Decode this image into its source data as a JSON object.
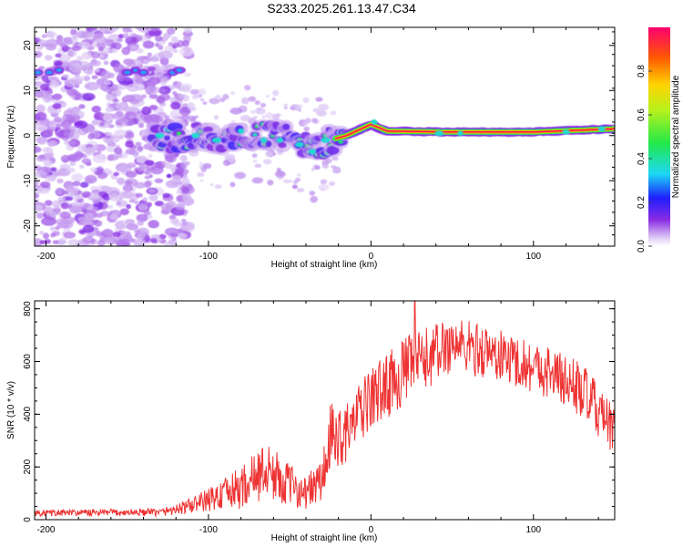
{
  "title": "S233.2025.261.13.47.C34",
  "chart_data": [
    {
      "type": "heatmap",
      "name": "spectrogram",
      "xlabel": "Height of straight line (km)",
      "ylabel": "Frequency (Hz)",
      "xlim": [
        -207,
        150
      ],
      "ylim": [
        -24.5,
        24
      ],
      "xticks": [
        -200,
        -100,
        0,
        100
      ],
      "yticks": [
        -20,
        -10,
        0,
        10,
        20
      ],
      "colorbar": {
        "label": "Normalized spectral amplitude",
        "range": [
          0.0,
          1.0
        ],
        "ticks": [
          0.0,
          0.2,
          0.4,
          0.6,
          0.8
        ],
        "tick_labels": [
          "0.0",
          "0.2",
          "0.4",
          "0.6",
          "0.8"
        ]
      },
      "ridge": [
        {
          "x": -130,
          "y": -1.0
        },
        {
          "x": -110,
          "y": 0.0
        },
        {
          "x": -90,
          "y": -1.5
        },
        {
          "x": -70,
          "y": 0.5
        },
        {
          "x": -55,
          "y": 0.0
        },
        {
          "x": -45,
          "y": -1.0
        },
        {
          "x": -35,
          "y": -3.5
        },
        {
          "x": -25,
          "y": -1.0
        },
        {
          "x": -15,
          "y": 0.0
        },
        {
          "x": 0,
          "y": 2.5
        },
        {
          "x": 10,
          "y": 1.0
        },
        {
          "x": 50,
          "y": 0.8
        },
        {
          "x": 100,
          "y": 0.8
        },
        {
          "x": 150,
          "y": 1.5
        }
      ]
    },
    {
      "type": "line",
      "name": "snr",
      "xlabel": "Height of straight line (km)",
      "ylabel": "SNR (10 * v/v)",
      "xlim": [
        -207,
        150
      ],
      "ylim": [
        0,
        830
      ],
      "xticks": [
        -200,
        -100,
        0,
        100
      ],
      "yticks": [
        0,
        200,
        400,
        600,
        800
      ],
      "color": "#ee3333",
      "envelope": [
        {
          "x": -207,
          "mean": 25,
          "spread": 12
        },
        {
          "x": -130,
          "mean": 28,
          "spread": 15
        },
        {
          "x": -115,
          "mean": 45,
          "spread": 25
        },
        {
          "x": -100,
          "mean": 75,
          "spread": 45
        },
        {
          "x": -80,
          "mean": 120,
          "spread": 80
        },
        {
          "x": -65,
          "mean": 190,
          "spread": 110
        },
        {
          "x": -55,
          "mean": 150,
          "spread": 90
        },
        {
          "x": -40,
          "mean": 100,
          "spread": 60
        },
        {
          "x": -30,
          "mean": 150,
          "spread": 100
        },
        {
          "x": -25,
          "mean": 300,
          "spread": 140
        },
        {
          "x": -15,
          "mean": 330,
          "spread": 110
        },
        {
          "x": 0,
          "mean": 460,
          "spread": 120
        },
        {
          "x": 20,
          "mean": 560,
          "spread": 130
        },
        {
          "x": 50,
          "mean": 670,
          "spread": 110
        },
        {
          "x": 80,
          "mean": 620,
          "spread": 100
        },
        {
          "x": 110,
          "mean": 560,
          "spread": 100
        },
        {
          "x": 130,
          "mean": 490,
          "spread": 110
        },
        {
          "x": 150,
          "mean": 330,
          "spread": 90
        }
      ],
      "peak": {
        "x": 27,
        "y": 830
      }
    }
  ]
}
